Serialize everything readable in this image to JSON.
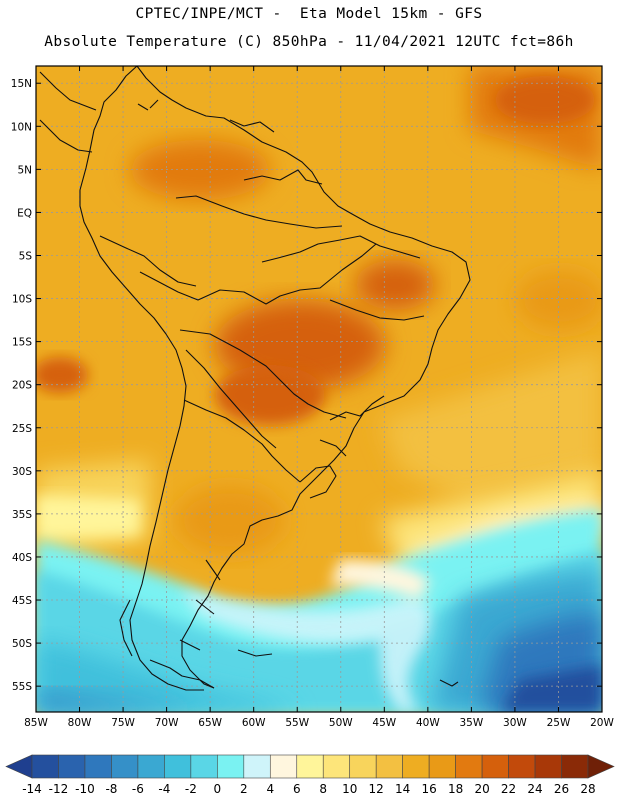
{
  "header": {
    "line1": "CPTEC/INPE/MCT -  Eta Model 15km - GFS",
    "line2": "Absolute Temperature (C) 850hPa - 11/04/2021 12UTC fct=86h"
  },
  "map": {
    "region": "South America",
    "lon_range": [
      -85,
      -20
    ],
    "lat_range": [
      -58,
      17
    ],
    "grid": true,
    "lat_ticks": [
      {
        "value": 15,
        "label": "15N"
      },
      {
        "value": 10,
        "label": "10N"
      },
      {
        "value": 5,
        "label": "5N"
      },
      {
        "value": 0,
        "label": "EQ"
      },
      {
        "value": -5,
        "label": "5S"
      },
      {
        "value": -10,
        "label": "10S"
      },
      {
        "value": -15,
        "label": "15S"
      },
      {
        "value": -20,
        "label": "20S"
      },
      {
        "value": -25,
        "label": "25S"
      },
      {
        "value": -30,
        "label": "30S"
      },
      {
        "value": -35,
        "label": "35S"
      },
      {
        "value": -40,
        "label": "40S"
      },
      {
        "value": -45,
        "label": "45S"
      },
      {
        "value": -50,
        "label": "50S"
      },
      {
        "value": -55,
        "label": "55S"
      }
    ],
    "lon_ticks": [
      {
        "value": -85,
        "label": "85W"
      },
      {
        "value": -80,
        "label": "80W"
      },
      {
        "value": -75,
        "label": "75W"
      },
      {
        "value": -70,
        "label": "70W"
      },
      {
        "value": -65,
        "label": "65W"
      },
      {
        "value": -60,
        "label": "60W"
      },
      {
        "value": -55,
        "label": "55W"
      },
      {
        "value": -50,
        "label": "50W"
      },
      {
        "value": -45,
        "label": "45W"
      },
      {
        "value": -40,
        "label": "40W"
      },
      {
        "value": -35,
        "label": "35W"
      },
      {
        "value": -30,
        "label": "30W"
      },
      {
        "value": -25,
        "label": "25W"
      },
      {
        "value": -20,
        "label": "20W"
      }
    ]
  },
  "colorbar": {
    "labels": [
      "-14",
      "-12",
      "-10",
      "-8",
      "-6",
      "-4",
      "-2",
      "0",
      "2",
      "4",
      "6",
      "8",
      "10",
      "12",
      "14",
      "16",
      "18",
      "20",
      "22",
      "24",
      "26",
      "28"
    ],
    "colors": [
      "#1f3f8f",
      "#24509e",
      "#2a63ae",
      "#2f78bd",
      "#3590c8",
      "#3aa8d2",
      "#40c0dc",
      "#5ad6e6",
      "#7af2f2",
      "#cff4fa",
      "#fff6de",
      "#fff59a",
      "#fde57a",
      "#f8d45c",
      "#f3c041",
      "#eead22",
      "#e99a17",
      "#e27a10",
      "#d5600c",
      "#c24a0b",
      "#a83808",
      "#8a2a07",
      "#6f2007"
    ]
  }
}
